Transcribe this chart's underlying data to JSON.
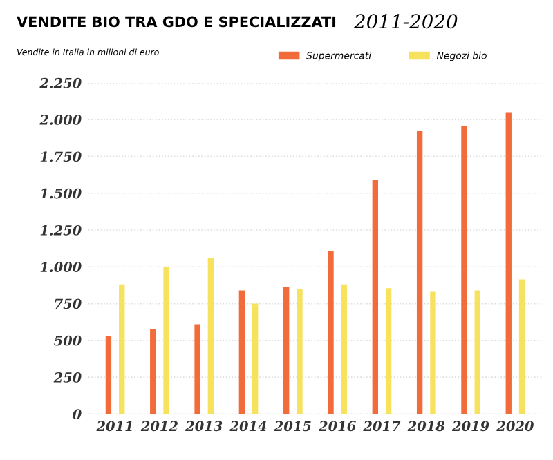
{
  "chart_data": {
    "type": "bar",
    "title": "VENDITE BIO TRA GDO E SPECIALIZZATI",
    "subtitle": "2011-2020",
    "annotations": [
      "Vendite in Italia in milioni di euro"
    ],
    "categories": [
      "2011",
      "2012",
      "2013",
      "2014",
      "2015",
      "2016",
      "2017",
      "2018",
      "2019",
      "2020"
    ],
    "series": [
      {
        "name": "Supermercati",
        "color": "#f26b3a",
        "values": [
          530,
          575,
          610,
          840,
          865,
          1105,
          1590,
          1925,
          1955,
          2050
        ]
      },
      {
        "name": "Negozi bio",
        "color": "#f7e25e",
        "values": [
          880,
          1000,
          1060,
          750,
          850,
          880,
          855,
          830,
          840,
          915
        ]
      }
    ],
    "ylim": [
      0,
      2250
    ],
    "yticks": [
      0,
      250,
      500,
      750,
      {
        "value": 1000,
        "label": "1.000"
      },
      {
        "value": 1250,
        "label": "1.250"
      },
      {
        "value": 1500,
        "label": "1.500"
      },
      {
        "value": 1750,
        "label": "1.750"
      },
      {
        "value": 2000,
        "label": "2.000"
      },
      {
        "value": 2250,
        "label": "2.250"
      }
    ],
    "grid": "y",
    "legend": "top"
  }
}
